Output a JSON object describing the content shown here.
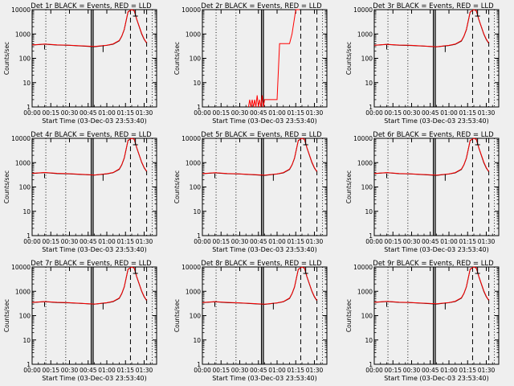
{
  "colors": {
    "background": "#efefef",
    "axis": "#000000",
    "events_series": "#000000",
    "lld_series": "#ff0000"
  },
  "chart_data": [
    {
      "type": "line",
      "title": "Det 1r BLACK = Events, RED = LLD",
      "xlabel": "Start Time (03-Dec-03 23:53:40)",
      "ylabel": "Counts/sec",
      "yscale": "log",
      "ylim": [
        1,
        10000
      ],
      "yticks": [
        "1",
        "10",
        "100",
        "1000",
        "10000"
      ],
      "xticks": [
        "00:00",
        "00:15",
        "00:30",
        "00:45",
        "01:00",
        "01:15",
        "01:30"
      ],
      "xlim_min": [
        0,
        100
      ],
      "profile": "normal",
      "series": [
        {
          "name": "Events",
          "x_min": [
            0,
            10,
            20,
            30,
            40,
            50,
            60,
            65,
            70,
            72,
            74,
            77,
            80,
            82,
            84,
            88,
            90,
            92
          ],
          "values": [
            350,
            380,
            350,
            340,
            320,
            300,
            340,
            380,
            520,
            800,
            1500,
            8000,
            10000,
            9000,
            4000,
            1000,
            600,
            420
          ]
        },
        {
          "name": "LLD",
          "x_min": [
            0,
            10,
            20,
            30,
            40,
            50,
            60,
            65,
            70,
            72,
            74,
            77,
            80,
            82,
            84,
            88,
            90,
            92
          ],
          "values": [
            355,
            385,
            360,
            345,
            325,
            305,
            345,
            390,
            540,
            820,
            1550,
            8200,
            10000,
            9200,
            4100,
            1050,
            620,
            430
          ]
        }
      ]
    },
    {
      "type": "line",
      "title": "Det 2r BLACK = Events, RED = LLD",
      "xlabel": "Start Time (03-Dec-03 23:53:40)",
      "ylabel": "Counts/sec",
      "yscale": "log",
      "ylim": [
        1,
        10000
      ],
      "yticks": [
        "1",
        "10",
        "100",
        "1000",
        "10000"
      ],
      "xticks": [
        "00:00",
        "00:15",
        "00:30",
        "00:45",
        "01:00",
        "01:15",
        "01:30"
      ],
      "xlim_min": [
        0,
        100
      ],
      "profile": "det2",
      "series": [
        {
          "name": "Events",
          "x_min": [
            0,
            100
          ],
          "values": [
            1,
            1
          ]
        },
        {
          "name": "LLD",
          "x_min": [
            37,
            38,
            39,
            40,
            41,
            42,
            43,
            44,
            45,
            46,
            47,
            48,
            49,
            50,
            60,
            62,
            64,
            66,
            68,
            70,
            72,
            75,
            78
          ],
          "values": [
            1,
            2,
            1,
            2,
            1,
            2,
            1,
            3,
            1,
            2,
            1,
            3,
            1,
            2,
            2,
            400,
            400,
            400,
            400,
            400,
            1000,
            10000,
            10000
          ]
        }
      ]
    },
    {
      "type": "line",
      "title": "Det 3r BLACK = Events, RED = LLD",
      "xlabel": "Start Time (03-Dec-03 23:53:40)",
      "ylabel": "Counts/sec",
      "yscale": "log",
      "ylim": [
        1,
        10000
      ],
      "yticks": [
        "1",
        "10",
        "100",
        "1000",
        "10000"
      ],
      "xticks": [
        "00:00",
        "00:15",
        "00:30",
        "00:45",
        "01:00",
        "01:15",
        "01:30"
      ],
      "xlim_min": [
        0,
        100
      ],
      "profile": "normal",
      "series": [
        {
          "name": "Events",
          "x_min": [
            0,
            10,
            20,
            30,
            40,
            50,
            60,
            65,
            70,
            72,
            74,
            77,
            80,
            82,
            84,
            88,
            90,
            92
          ],
          "values": [
            340,
            370,
            345,
            335,
            315,
            295,
            335,
            375,
            510,
            790,
            1480,
            7900,
            10000,
            9000,
            3900,
            990,
            590,
            410
          ]
        },
        {
          "name": "LLD",
          "x_min": [
            0,
            10,
            20,
            30,
            40,
            50,
            60,
            65,
            70,
            72,
            74,
            77,
            80,
            82,
            84,
            88,
            90,
            92
          ],
          "values": [
            345,
            375,
            350,
            340,
            320,
            300,
            340,
            385,
            530,
            810,
            1520,
            8100,
            10000,
            9100,
            4000,
            1020,
            610,
            420
          ]
        }
      ]
    },
    {
      "type": "line",
      "title": "Det 4r BLACK = Events, RED = LLD",
      "xlabel": "Start Time (03-Dec-03 23:53:40)",
      "ylabel": "Counts/sec",
      "yscale": "log",
      "ylim": [
        1,
        10000
      ],
      "yticks": [
        "1",
        "10",
        "100",
        "1000",
        "10000"
      ],
      "xticks": [
        "00:00",
        "00:15",
        "00:30",
        "00:45",
        "01:00",
        "01:15",
        "01:30"
      ],
      "xlim_min": [
        0,
        100
      ],
      "profile": "normal",
      "series": [
        {
          "name": "Events",
          "x_min": [
            0,
            10,
            20,
            30,
            40,
            50,
            60,
            65,
            70,
            72,
            74,
            77,
            80,
            82,
            84,
            88,
            90,
            92
          ],
          "values": [
            360,
            390,
            355,
            345,
            325,
            305,
            345,
            385,
            530,
            810,
            1520,
            8100,
            10000,
            9100,
            4100,
            1020,
            610,
            430
          ]
        },
        {
          "name": "LLD",
          "x_min": [
            0,
            10,
            20,
            30,
            40,
            50,
            60,
            65,
            70,
            72,
            74,
            77,
            80,
            82,
            84,
            88,
            90,
            92
          ],
          "values": [
            365,
            395,
            365,
            350,
            330,
            310,
            350,
            395,
            550,
            830,
            1560,
            8300,
            10000,
            9300,
            4200,
            1060,
            630,
            440
          ]
        }
      ]
    },
    {
      "type": "line",
      "title": "Det 5r BLACK = Events, RED = LLD",
      "xlabel": "Start Time (03-Dec-03 23:53:40)",
      "ylabel": "Counts/sec",
      "yscale": "log",
      "ylim": [
        1,
        10000
      ],
      "yticks": [
        "1",
        "10",
        "100",
        "1000",
        "10000"
      ],
      "xticks": [
        "00:00",
        "00:15",
        "00:30",
        "00:45",
        "01:00",
        "01:15",
        "01:30"
      ],
      "xlim_min": [
        0,
        100
      ],
      "profile": "normal",
      "series": [
        {
          "name": "Events",
          "x_min": [
            0,
            10,
            20,
            30,
            40,
            50,
            60,
            65,
            70,
            72,
            74,
            77,
            80,
            82,
            84,
            88,
            90,
            92
          ],
          "values": [
            350,
            380,
            350,
            340,
            320,
            300,
            340,
            380,
            520,
            800,
            1500,
            8000,
            10000,
            9000,
            4000,
            1000,
            600,
            420
          ]
        },
        {
          "name": "LLD",
          "x_min": [
            0,
            10,
            20,
            30,
            40,
            50,
            60,
            65,
            70,
            72,
            74,
            77,
            80,
            82,
            84,
            88,
            90,
            92
          ],
          "values": [
            355,
            385,
            360,
            345,
            325,
            305,
            345,
            390,
            540,
            820,
            1550,
            8200,
            10000,
            9200,
            4100,
            1050,
            620,
            430
          ]
        }
      ]
    },
    {
      "type": "line",
      "title": "Det 6r BLACK = Events, RED = LLD",
      "xlabel": "Start Time (03-Dec-03 23:53:40)",
      "ylabel": "Counts/sec",
      "yscale": "log",
      "ylim": [
        1,
        10000
      ],
      "yticks": [
        "1",
        "10",
        "100",
        "1000",
        "10000"
      ],
      "xticks": [
        "00:00",
        "00:15",
        "00:30",
        "00:45",
        "01:00",
        "01:15",
        "01:30"
      ],
      "xlim_min": [
        0,
        100
      ],
      "profile": "normal",
      "series": [
        {
          "name": "Events",
          "x_min": [
            0,
            10,
            20,
            30,
            40,
            50,
            60,
            65,
            70,
            72,
            74,
            77,
            80,
            82,
            84,
            88,
            90,
            92
          ],
          "values": [
            355,
            385,
            350,
            340,
            320,
            300,
            340,
            380,
            520,
            800,
            1500,
            8000,
            10000,
            9000,
            4000,
            1000,
            600,
            420
          ]
        },
        {
          "name": "LLD",
          "x_min": [
            0,
            10,
            20,
            30,
            40,
            50,
            60,
            65,
            70,
            72,
            74,
            77,
            80,
            82,
            84,
            88,
            90,
            92
          ],
          "values": [
            360,
            390,
            360,
            345,
            325,
            305,
            345,
            390,
            540,
            820,
            1550,
            8200,
            10000,
            9200,
            4100,
            1050,
            620,
            430
          ]
        }
      ]
    },
    {
      "type": "line",
      "title": "Det 7r BLACK = Events, RED = LLD",
      "xlabel": "Start Time (03-Dec-03 23:53:40)",
      "ylabel": "Counts/sec",
      "yscale": "log",
      "ylim": [
        1,
        10000
      ],
      "yticks": [
        "1",
        "10",
        "100",
        "1000",
        "10000"
      ],
      "xticks": [
        "00:00",
        "00:15",
        "00:30",
        "00:45",
        "01:00",
        "01:15",
        "01:30"
      ],
      "xlim_min": [
        0,
        100
      ],
      "profile": "normal",
      "series": [
        {
          "name": "Events",
          "x_min": [
            0,
            10,
            20,
            30,
            40,
            50,
            60,
            65,
            70,
            72,
            74,
            77,
            80,
            82,
            84,
            88,
            90,
            92
          ],
          "values": [
            345,
            375,
            345,
            335,
            315,
            295,
            335,
            375,
            515,
            795,
            1490,
            7950,
            10000,
            9000,
            3950,
            995,
            595,
            415
          ]
        },
        {
          "name": "LLD",
          "x_min": [
            0,
            10,
            20,
            30,
            40,
            50,
            60,
            65,
            70,
            72,
            74,
            77,
            80,
            82,
            84,
            88,
            90,
            92
          ],
          "values": [
            350,
            380,
            355,
            340,
            320,
            300,
            340,
            385,
            535,
            815,
            1540,
            8150,
            10000,
            9150,
            4050,
            1035,
            615,
            425
          ]
        }
      ]
    },
    {
      "type": "line",
      "title": "Det 8r BLACK = Events, RED = LLD",
      "xlabel": "Start Time (03-Dec-03 23:53:40)",
      "ylabel": "Counts/sec",
      "yscale": "log",
      "ylim": [
        1,
        10000
      ],
      "yticks": [
        "1",
        "10",
        "100",
        "1000",
        "10000"
      ],
      "xticks": [
        "00:00",
        "00:15",
        "00:30",
        "00:45",
        "01:00",
        "01:15",
        "01:30"
      ],
      "xlim_min": [
        0,
        100
      ],
      "profile": "normal",
      "series": [
        {
          "name": "Events",
          "x_min": [
            0,
            10,
            20,
            30,
            40,
            50,
            60,
            65,
            70,
            72,
            74,
            77,
            80,
            82,
            84,
            88,
            90,
            92
          ],
          "values": [
            340,
            370,
            340,
            330,
            310,
            290,
            330,
            370,
            510,
            790,
            1480,
            7900,
            10000,
            8900,
            3900,
            990,
            590,
            410
          ]
        },
        {
          "name": "LLD",
          "x_min": [
            0,
            10,
            20,
            30,
            40,
            50,
            60,
            65,
            70,
            72,
            74,
            77,
            80,
            82,
            84,
            88,
            90,
            92
          ],
          "values": [
            345,
            375,
            350,
            335,
            315,
            295,
            335,
            380,
            530,
            810,
            1520,
            8100,
            10000,
            9100,
            4000,
            1020,
            610,
            420
          ]
        }
      ]
    },
    {
      "type": "line",
      "title": "Det 9r BLACK = Events, RED = LLD",
      "xlabel": "Start Time (03-Dec-03 23:53:40)",
      "ylabel": "Counts/sec",
      "yscale": "log",
      "ylim": [
        1,
        10000
      ],
      "yticks": [
        "1",
        "10",
        "100",
        "1000",
        "10000"
      ],
      "xticks": [
        "00:00",
        "00:15",
        "00:30",
        "00:45",
        "01:00",
        "01:15",
        "01:30"
      ],
      "xlim_min": [
        0,
        100
      ],
      "profile": "normal",
      "series": [
        {
          "name": "Events",
          "x_min": [
            0,
            10,
            20,
            30,
            40,
            50,
            60,
            65,
            70,
            72,
            74,
            77,
            80,
            82,
            84,
            88,
            90,
            92
          ],
          "values": [
            350,
            380,
            350,
            340,
            320,
            300,
            340,
            380,
            520,
            800,
            1500,
            8000,
            10000,
            9000,
            4000,
            1000,
            600,
            420
          ]
        },
        {
          "name": "LLD",
          "x_min": [
            0,
            10,
            20,
            30,
            40,
            50,
            60,
            65,
            70,
            72,
            74,
            77,
            80,
            82,
            84,
            88,
            90,
            92
          ],
          "values": [
            355,
            385,
            360,
            345,
            325,
            305,
            345,
            390,
            540,
            820,
            1550,
            8200,
            10000,
            9200,
            4100,
            1050,
            620,
            430
          ]
        }
      ]
    }
  ]
}
